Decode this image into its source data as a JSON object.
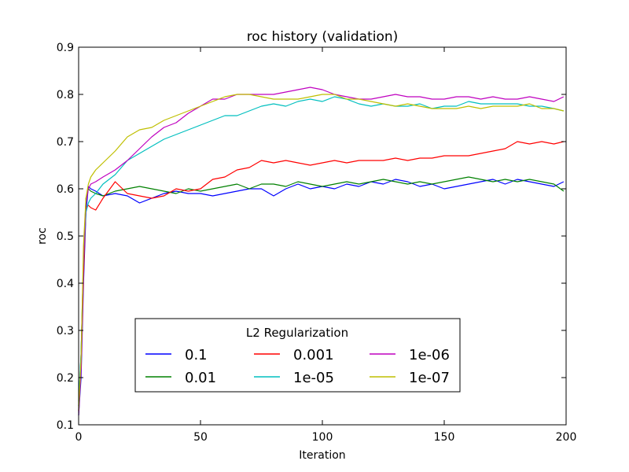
{
  "chart_data": {
    "type": "line",
    "title": "roc history (validation)",
    "xlabel": "Iteration",
    "ylabel": "roc",
    "xlim": [
      0,
      200
    ],
    "ylim": [
      0.1,
      0.9
    ],
    "xticks": [
      "0",
      "50",
      "100",
      "150",
      "200"
    ],
    "yticks": [
      "0.1",
      "0.2",
      "0.3",
      "0.4",
      "0.5",
      "0.6",
      "0.7",
      "0.8",
      "0.9"
    ],
    "grid": false,
    "legend": {
      "title": "L2 Regularization",
      "position": "lower-center",
      "columns": 3
    },
    "x": [
      0,
      1,
      2,
      3,
      4,
      5,
      7,
      10,
      15,
      20,
      25,
      30,
      35,
      40,
      45,
      50,
      55,
      60,
      65,
      70,
      75,
      80,
      85,
      90,
      95,
      100,
      105,
      110,
      115,
      120,
      125,
      130,
      135,
      140,
      145,
      150,
      155,
      160,
      165,
      170,
      175,
      180,
      185,
      190,
      195,
      199
    ],
    "series": [
      {
        "name": "0.1",
        "color": "#0000ff",
        "values": [
          0.12,
          0.2,
          0.4,
          0.55,
          0.605,
          0.6,
          0.595,
          0.585,
          0.59,
          0.585,
          0.57,
          0.58,
          0.59,
          0.595,
          0.59,
          0.59,
          0.585,
          0.59,
          0.595,
          0.6,
          0.6,
          0.585,
          0.6,
          0.61,
          0.6,
          0.605,
          0.6,
          0.61,
          0.605,
          0.615,
          0.61,
          0.62,
          0.615,
          0.605,
          0.61,
          0.6,
          0.605,
          0.61,
          0.615,
          0.62,
          0.61,
          0.62,
          0.615,
          0.61,
          0.605,
          0.615
        ]
      },
      {
        "name": "0.01",
        "color": "#008000",
        "values": [
          0.14,
          0.25,
          0.45,
          0.58,
          0.6,
          0.595,
          0.59,
          0.585,
          0.595,
          0.6,
          0.605,
          0.6,
          0.595,
          0.59,
          0.6,
          0.595,
          0.6,
          0.605,
          0.61,
          0.6,
          0.61,
          0.61,
          0.605,
          0.615,
          0.61,
          0.605,
          0.61,
          0.615,
          0.61,
          0.615,
          0.62,
          0.615,
          0.61,
          0.615,
          0.61,
          0.615,
          0.62,
          0.625,
          0.62,
          0.615,
          0.62,
          0.615,
          0.62,
          0.615,
          0.61,
          0.595
        ]
      },
      {
        "name": "0.001",
        "color": "#ff0000",
        "values": [
          0.13,
          0.22,
          0.42,
          0.56,
          0.565,
          0.56,
          0.555,
          0.58,
          0.615,
          0.59,
          0.585,
          0.58,
          0.585,
          0.6,
          0.595,
          0.6,
          0.62,
          0.625,
          0.64,
          0.645,
          0.66,
          0.655,
          0.66,
          0.655,
          0.65,
          0.655,
          0.66,
          0.655,
          0.66,
          0.66,
          0.66,
          0.665,
          0.66,
          0.665,
          0.665,
          0.67,
          0.67,
          0.67,
          0.675,
          0.68,
          0.685,
          0.7,
          0.695,
          0.7,
          0.695,
          0.7
        ]
      },
      {
        "name": "1e-05",
        "color": "#00bfbf",
        "values": [
          0.15,
          0.25,
          0.45,
          0.55,
          0.57,
          0.58,
          0.59,
          0.61,
          0.63,
          0.66,
          0.675,
          0.69,
          0.705,
          0.715,
          0.725,
          0.735,
          0.745,
          0.755,
          0.755,
          0.765,
          0.775,
          0.78,
          0.775,
          0.785,
          0.79,
          0.785,
          0.795,
          0.79,
          0.78,
          0.775,
          0.78,
          0.775,
          0.775,
          0.78,
          0.77,
          0.775,
          0.775,
          0.785,
          0.78,
          0.78,
          0.78,
          0.78,
          0.775,
          0.775,
          0.77,
          0.765
        ]
      },
      {
        "name": "1e-06",
        "color": "#bf00bf",
        "values": [
          0.12,
          0.22,
          0.45,
          0.57,
          0.6,
          0.61,
          0.615,
          0.625,
          0.64,
          0.66,
          0.685,
          0.71,
          0.73,
          0.74,
          0.76,
          0.775,
          0.79,
          0.79,
          0.8,
          0.8,
          0.8,
          0.8,
          0.805,
          0.81,
          0.815,
          0.81,
          0.8,
          0.795,
          0.79,
          0.79,
          0.795,
          0.8,
          0.795,
          0.795,
          0.79,
          0.79,
          0.795,
          0.795,
          0.79,
          0.795,
          0.79,
          0.79,
          0.795,
          0.79,
          0.785,
          0.795
        ]
      },
      {
        "name": "1e-07",
        "color": "#bfbf00",
        "values": [
          0.13,
          0.24,
          0.48,
          0.58,
          0.61,
          0.625,
          0.64,
          0.655,
          0.68,
          0.71,
          0.725,
          0.73,
          0.745,
          0.755,
          0.765,
          0.775,
          0.785,
          0.795,
          0.8,
          0.8,
          0.795,
          0.79,
          0.79,
          0.79,
          0.795,
          0.8,
          0.8,
          0.79,
          0.79,
          0.785,
          0.78,
          0.775,
          0.78,
          0.775,
          0.77,
          0.77,
          0.77,
          0.775,
          0.77,
          0.775,
          0.775,
          0.775,
          0.78,
          0.77,
          0.77,
          0.765
        ]
      }
    ]
  }
}
